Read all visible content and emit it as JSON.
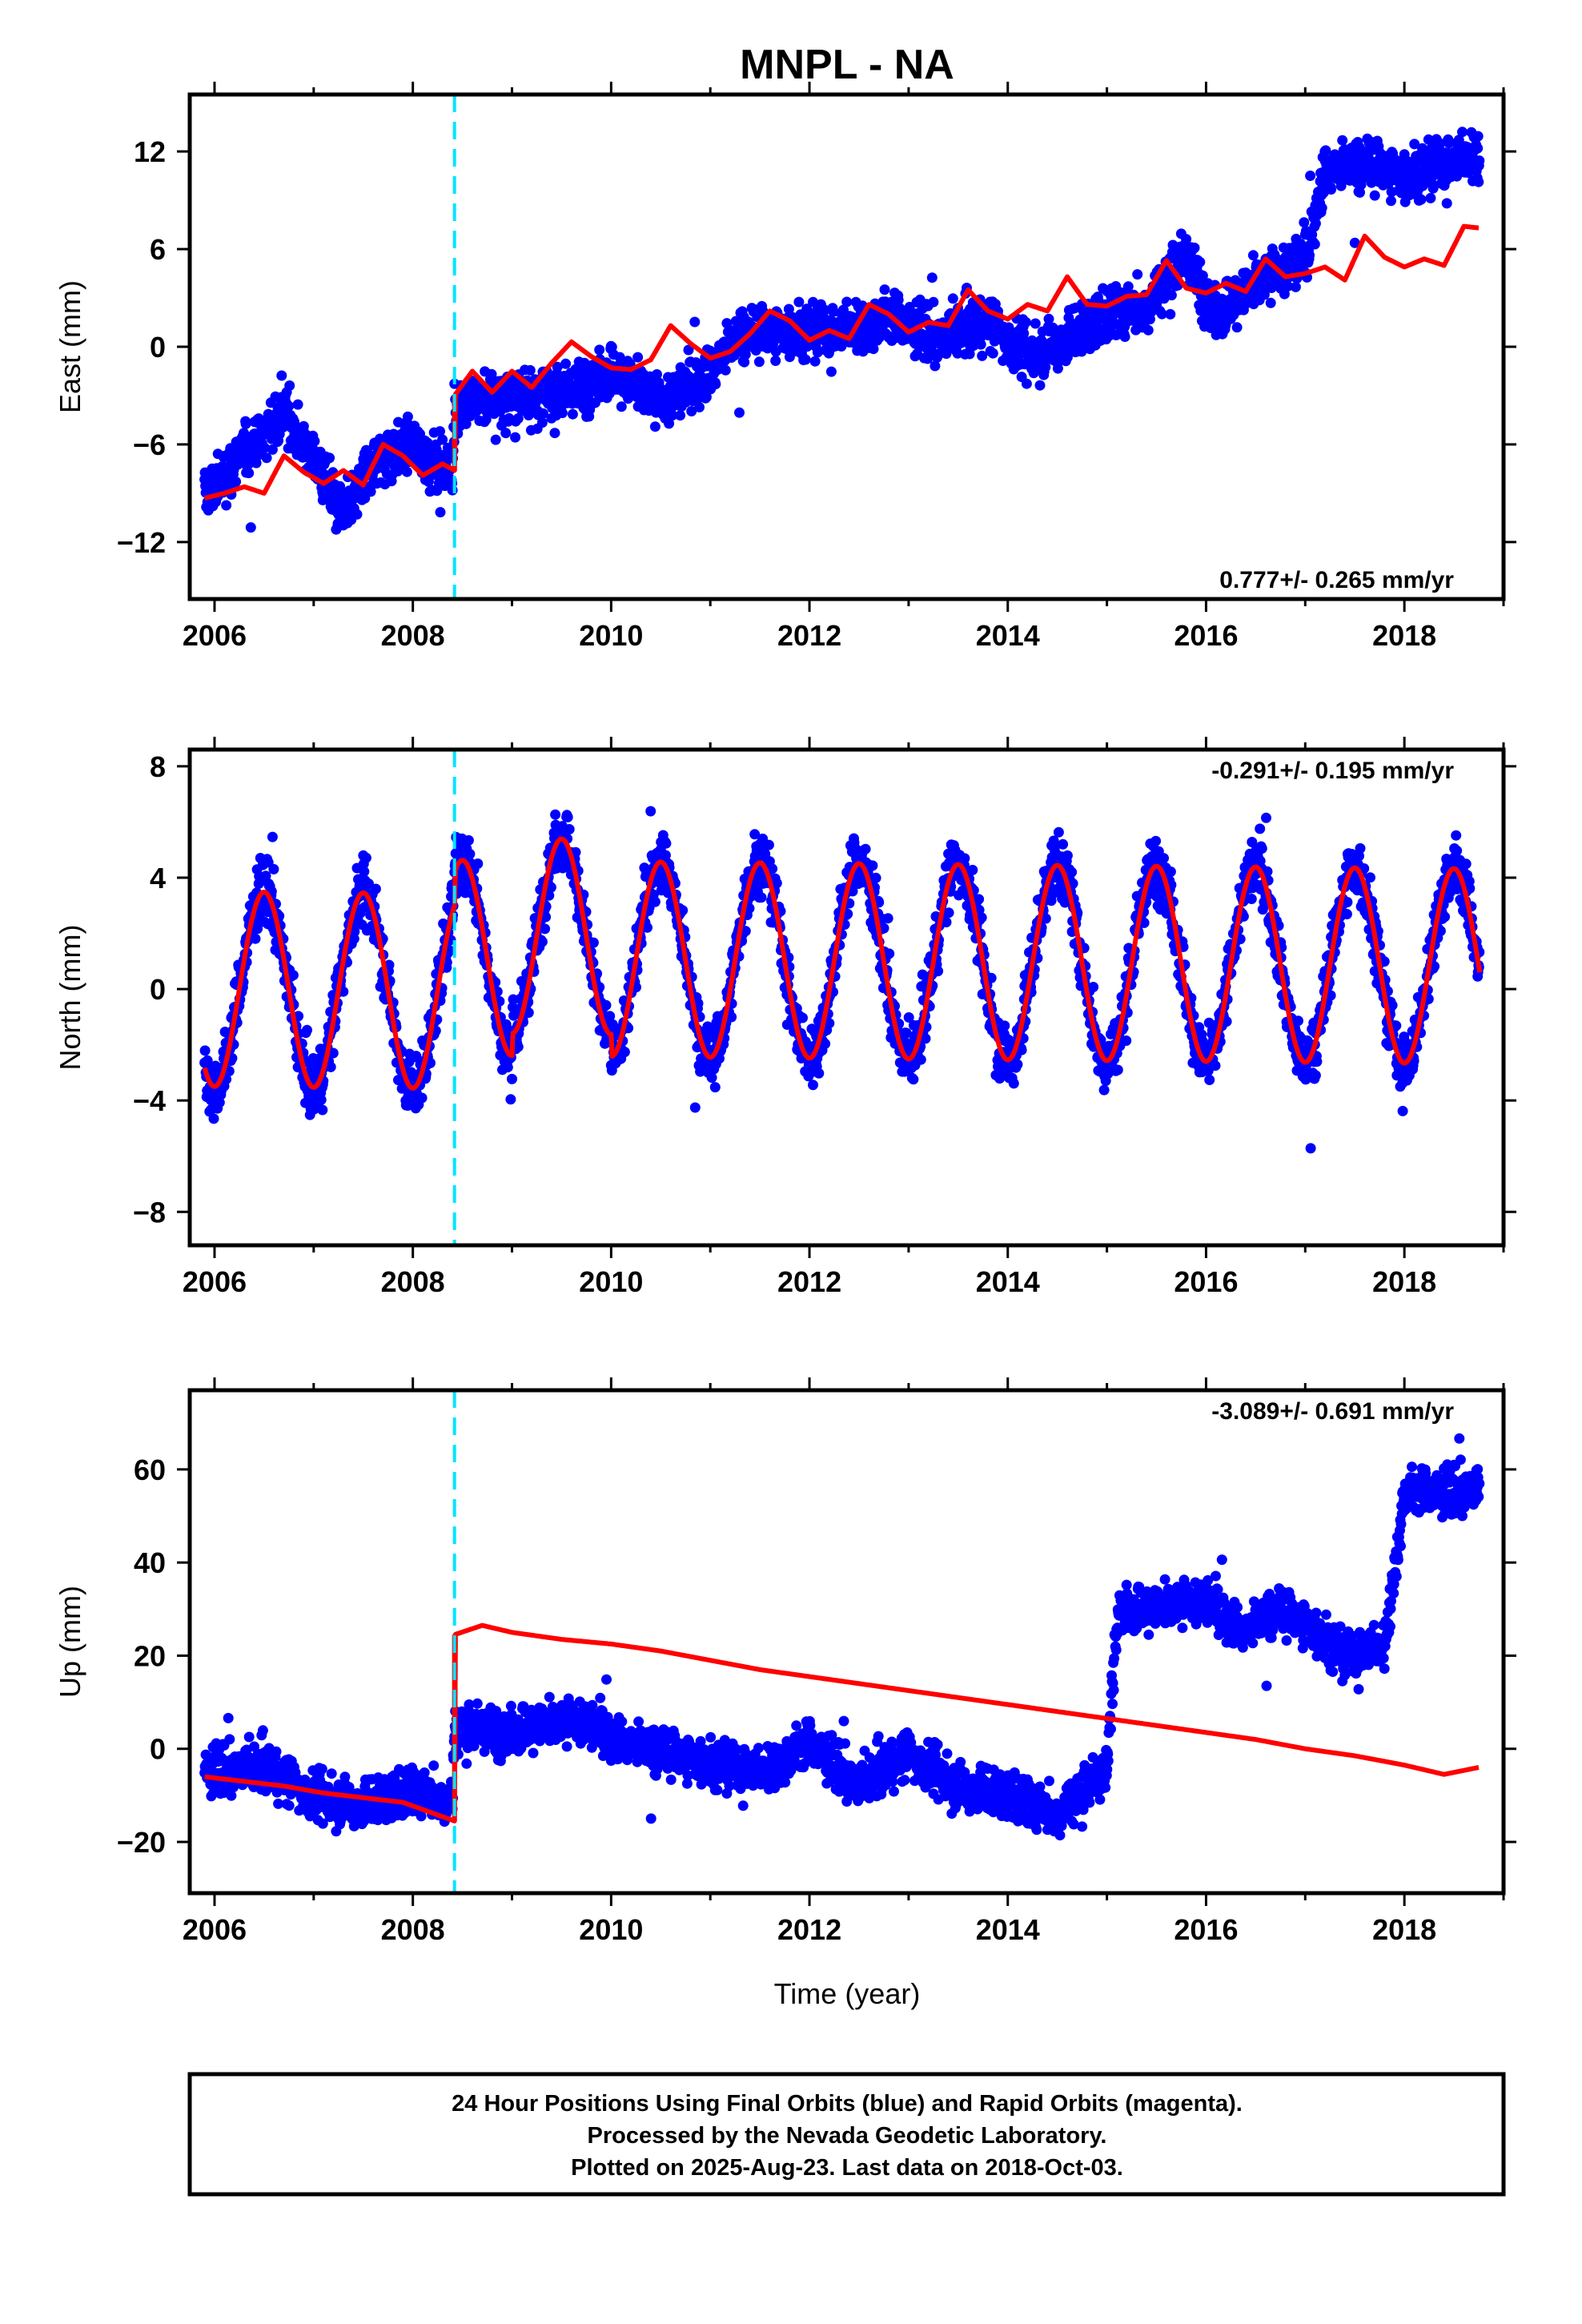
{
  "chart_data": {
    "type": "scatter",
    "title": "MNPL - NA",
    "xlabel": "Time (year)",
    "xlim": [
      2005.75,
      2019.0
    ],
    "x_ticks": [
      "2006",
      "2008",
      "2010",
      "2012",
      "2014",
      "2016",
      "2018"
    ],
    "offset_marker_year": 2008.42,
    "colors": {
      "observed": "#0000ff",
      "model": "#ff0000",
      "offset_line": "#00e5ff"
    },
    "series_labels": {
      "observed": "Final Orbits (blue)",
      "rapid": "Rapid Orbits (magenta)"
    },
    "panels": [
      {
        "ylabel": "East (mm)",
        "ylim": [
          -15.5,
          15.5
        ],
        "y_ticks": [
          -12,
          -6,
          0,
          6,
          12
        ],
        "rate_text": "0.777+/- 0.265 mm/yr",
        "rate_position": "bottom-right",
        "model_curve": [
          [
            2005.9,
            -9.3
          ],
          [
            2006.1,
            -9.0
          ],
          [
            2006.3,
            -8.6
          ],
          [
            2006.5,
            -9.0
          ],
          [
            2006.7,
            -6.7
          ],
          [
            2006.9,
            -7.7
          ],
          [
            2007.1,
            -8.4
          ],
          [
            2007.3,
            -7.6
          ],
          [
            2007.5,
            -8.5
          ],
          [
            2007.7,
            -6.0
          ],
          [
            2007.9,
            -6.7
          ],
          [
            2008.1,
            -7.9
          ],
          [
            2008.3,
            -7.2
          ],
          [
            2008.42,
            -7.6
          ],
          [
            2008.42,
            -3.0
          ],
          [
            2008.6,
            -1.5
          ],
          [
            2008.8,
            -2.8
          ],
          [
            2009.0,
            -1.5
          ],
          [
            2009.2,
            -2.5
          ],
          [
            2009.4,
            -1.0
          ],
          [
            2009.6,
            0.3
          ],
          [
            2009.8,
            -0.6
          ],
          [
            2010.0,
            -1.3
          ],
          [
            2010.2,
            -1.4
          ],
          [
            2010.4,
            -0.8
          ],
          [
            2010.6,
            1.3
          ],
          [
            2010.8,
            0.2
          ],
          [
            2011.0,
            -0.7
          ],
          [
            2011.2,
            -0.3
          ],
          [
            2011.4,
            0.8
          ],
          [
            2011.6,
            2.2
          ],
          [
            2011.8,
            1.6
          ],
          [
            2012.0,
            0.4
          ],
          [
            2012.2,
            1.0
          ],
          [
            2012.4,
            0.5
          ],
          [
            2012.6,
            2.6
          ],
          [
            2012.8,
            2.0
          ],
          [
            2013.0,
            0.9
          ],
          [
            2013.2,
            1.5
          ],
          [
            2013.4,
            1.3
          ],
          [
            2013.6,
            3.5
          ],
          [
            2013.8,
            2.2
          ],
          [
            2014.0,
            1.7
          ],
          [
            2014.2,
            2.6
          ],
          [
            2014.4,
            2.2
          ],
          [
            2014.6,
            4.3
          ],
          [
            2014.8,
            2.6
          ],
          [
            2015.0,
            2.5
          ],
          [
            2015.2,
            3.1
          ],
          [
            2015.4,
            3.2
          ],
          [
            2015.6,
            5.3
          ],
          [
            2015.8,
            3.6
          ],
          [
            2016.0,
            3.3
          ],
          [
            2016.2,
            3.9
          ],
          [
            2016.4,
            3.4
          ],
          [
            2016.6,
            5.4
          ],
          [
            2016.8,
            4.3
          ],
          [
            2017.0,
            4.5
          ],
          [
            2017.2,
            4.9
          ],
          [
            2017.4,
            4.1
          ],
          [
            2017.6,
            6.8
          ],
          [
            2017.8,
            5.5
          ],
          [
            2018.0,
            4.9
          ],
          [
            2018.2,
            5.4
          ],
          [
            2018.4,
            5.0
          ],
          [
            2018.6,
            7.4
          ],
          [
            2018.75,
            7.3
          ]
        ],
        "observed_trend": [
          [
            2005.9,
            -9.2
          ],
          [
            2006.3,
            -6.5
          ],
          [
            2006.7,
            -4.0
          ],
          [
            2007.0,
            -7.0
          ],
          [
            2007.3,
            -10.5
          ],
          [
            2007.6,
            -7.0
          ],
          [
            2008.0,
            -6.0
          ],
          [
            2008.4,
            -8.0
          ],
          [
            2008.42,
            -3.5
          ],
          [
            2009.0,
            -3.0
          ],
          [
            2009.5,
            -3.0
          ],
          [
            2010.0,
            -1.5
          ],
          [
            2010.5,
            -3.5
          ],
          [
            2011.0,
            -1.5
          ],
          [
            2011.3,
            0.8
          ],
          [
            2011.8,
            1.0
          ],
          [
            2012.3,
            1.0
          ],
          [
            2012.8,
            1.8
          ],
          [
            2013.3,
            0.5
          ],
          [
            2013.8,
            1.5
          ],
          [
            2014.2,
            -0.5
          ],
          [
            2014.6,
            0.5
          ],
          [
            2015.0,
            2.0
          ],
          [
            2015.4,
            2.5
          ],
          [
            2015.8,
            5.5
          ],
          [
            2016.1,
            2.0
          ],
          [
            2016.5,
            3.8
          ],
          [
            2017.0,
            5.5
          ],
          [
            2017.2,
            10.8
          ],
          [
            2017.6,
            11.3
          ],
          [
            2018.0,
            10.5
          ],
          [
            2018.4,
            11.3
          ],
          [
            2018.75,
            11.8
          ]
        ],
        "scatter_spread": 1.6
      },
      {
        "ylabel": "North (mm)",
        "ylim": [
          -9.2,
          8.6
        ],
        "y_ticks": [
          -8,
          -4,
          0,
          4,
          8
        ],
        "rate_text": "-0.291+/- 0.195 mm/yr",
        "rate_position": "top-right",
        "model": {
          "amplitude": 3.5,
          "trend": -0.03,
          "phase_peak": 0.5,
          "offset_at_event": 1.2
        },
        "scatter_spread": 1.1
      },
      {
        "ylabel": "Up (mm)",
        "ylim": [
          -31,
          77
        ],
        "y_ticks": [
          -20,
          0,
          20,
          40,
          60
        ],
        "rate_text": "-3.089+/- 0.691 mm/yr",
        "rate_position": "top-right",
        "model_curve": [
          [
            2005.9,
            -6.0
          ],
          [
            2006.3,
            -7.0
          ],
          [
            2006.7,
            -8.0
          ],
          [
            2007.1,
            -9.5
          ],
          [
            2007.5,
            -10.5
          ],
          [
            2007.9,
            -11.5
          ],
          [
            2008.42,
            -15.5
          ],
          [
            2008.42,
            24.5
          ],
          [
            2008.7,
            26.5
          ],
          [
            2009.0,
            25.0
          ],
          [
            2009.5,
            23.5
          ],
          [
            2010.0,
            22.5
          ],
          [
            2010.5,
            21.0
          ],
          [
            2011.0,
            19.0
          ],
          [
            2011.5,
            17.0
          ],
          [
            2012.0,
            15.5
          ],
          [
            2012.5,
            14.0
          ],
          [
            2013.0,
            12.5
          ],
          [
            2013.5,
            11.0
          ],
          [
            2014.0,
            9.5
          ],
          [
            2014.5,
            8.0
          ],
          [
            2015.0,
            6.5
          ],
          [
            2015.5,
            5.0
          ],
          [
            2016.0,
            3.5
          ],
          [
            2016.5,
            2.0
          ],
          [
            2017.0,
            0.0
          ],
          [
            2017.5,
            -1.5
          ],
          [
            2018.0,
            -3.5
          ],
          [
            2018.4,
            -5.5
          ],
          [
            2018.75,
            -4.0
          ]
        ],
        "observed_trend": [
          [
            2005.9,
            -5.0
          ],
          [
            2006.5,
            -4.0
          ],
          [
            2007.0,
            -10.0
          ],
          [
            2007.5,
            -12.0
          ],
          [
            2008.0,
            -9.0
          ],
          [
            2008.4,
            -11.0
          ],
          [
            2008.42,
            4.0
          ],
          [
            2009.0,
            4.0
          ],
          [
            2009.7,
            6.0
          ],
          [
            2010.2,
            1.0
          ],
          [
            2011.0,
            -3.0
          ],
          [
            2011.5,
            -5.0
          ],
          [
            2012.0,
            1.0
          ],
          [
            2012.5,
            -8.0
          ],
          [
            2013.0,
            -1.0
          ],
          [
            2013.5,
            -8.0
          ],
          [
            2014.0,
            -10.0
          ],
          [
            2014.5,
            -14.0
          ],
          [
            2015.0,
            -5.0
          ],
          [
            2015.1,
            30.0
          ],
          [
            2015.5,
            30.0
          ],
          [
            2016.0,
            32.0
          ],
          [
            2016.4,
            25.0
          ],
          [
            2016.7,
            30.0
          ],
          [
            2017.0,
            27.0
          ],
          [
            2017.4,
            20.0
          ],
          [
            2017.8,
            22.0
          ],
          [
            2018.0,
            55.0
          ],
          [
            2018.4,
            55.0
          ],
          [
            2018.75,
            56.0
          ]
        ],
        "scatter_spread": 5.0
      }
    ]
  },
  "footer": {
    "line1": "24 Hour Positions Using Final Orbits (blue) and Rapid Orbits (magenta).",
    "line2": "Processed by the Nevada Geodetic Laboratory.",
    "line3": "Plotted on 2025-Aug-23. Last data on 2018-Oct-03."
  }
}
